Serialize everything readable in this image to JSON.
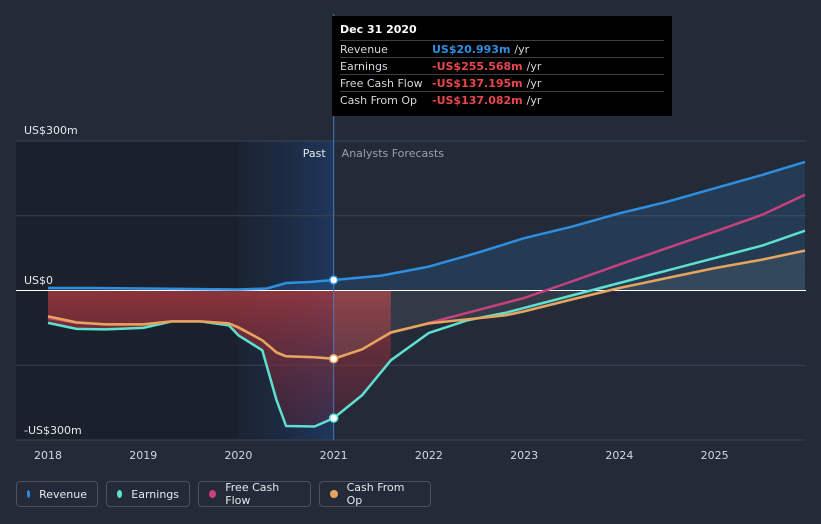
{
  "tooltip": {
    "date": "Dec 31 2020",
    "rows": [
      {
        "label": "Revenue",
        "value": "US$20.993m",
        "unit": "/yr",
        "color": "#2e8fe0"
      },
      {
        "label": "Earnings",
        "value": "-US$255.568m",
        "unit": "/yr",
        "color": "#e8474d"
      },
      {
        "label": "Free Cash Flow",
        "value": "-US$137.195m",
        "unit": "/yr",
        "color": "#e8474d"
      },
      {
        "label": "Cash From Op",
        "value": "-US$137.082m",
        "unit": "/yr",
        "color": "#e8474d"
      }
    ]
  },
  "legend": [
    {
      "label": "Revenue",
      "color": "#2e8fe0"
    },
    {
      "label": "Earnings",
      "color": "#5ee0d0"
    },
    {
      "label": "Free Cash Flow",
      "color": "#c8417e"
    },
    {
      "label": "Cash From Op",
      "color": "#e6a55c"
    }
  ],
  "chart_data": {
    "type": "line",
    "y_labels": {
      "top": "US$300m",
      "zero": "US$0",
      "bottom": "-US$300m"
    },
    "ylim": [
      -300,
      300
    ],
    "xlim": [
      2018,
      2026
    ],
    "x_ticks": [
      "2018",
      "2019",
      "2020",
      "2021",
      "2022",
      "2023",
      "2024",
      "2025"
    ],
    "past_label": "Past",
    "forecast_label": "Analysts Forecasts",
    "divider_x": 2021,
    "series": [
      {
        "name": "Revenue",
        "color": "#2e8fe0",
        "points": [
          [
            2018,
            5
          ],
          [
            2018.5,
            5
          ],
          [
            2019,
            4
          ],
          [
            2019.5,
            3
          ],
          [
            2020,
            2
          ],
          [
            2020.3,
            4
          ],
          [
            2020.5,
            15
          ],
          [
            2020.75,
            17
          ],
          [
            2021,
            21
          ],
          [
            2021.5,
            30
          ],
          [
            2022,
            48
          ],
          [
            2022.5,
            75
          ],
          [
            2023,
            105
          ],
          [
            2023.5,
            128
          ],
          [
            2024,
            155
          ],
          [
            2024.5,
            178
          ],
          [
            2025,
            205
          ],
          [
            2025.5,
            232
          ],
          [
            2025.95,
            258
          ]
        ]
      },
      {
        "name": "Earnings",
        "color": "#5ee0d0",
        "points": [
          [
            2018,
            -65
          ],
          [
            2018.3,
            -77
          ],
          [
            2018.6,
            -78
          ],
          [
            2019,
            -75
          ],
          [
            2019.3,
            -62
          ],
          [
            2019.6,
            -62
          ],
          [
            2019.9,
            -70
          ],
          [
            2020,
            -90
          ],
          [
            2020.25,
            -120
          ],
          [
            2020.4,
            -220
          ],
          [
            2020.5,
            -272
          ],
          [
            2020.8,
            -273
          ],
          [
            2021,
            -256
          ],
          [
            2021.3,
            -210
          ],
          [
            2021.6,
            -140
          ],
          [
            2022,
            -85
          ],
          [
            2022.4,
            -60
          ],
          [
            2022.8,
            -45
          ],
          [
            2023,
            -35
          ],
          [
            2023.5,
            -10
          ],
          [
            2024,
            15
          ],
          [
            2024.5,
            40
          ],
          [
            2025,
            65
          ],
          [
            2025.5,
            90
          ],
          [
            2025.95,
            120
          ]
        ]
      },
      {
        "name": "Free Cash Flow",
        "color": "#c8417e",
        "points": [
          [
            2018,
            -55
          ],
          [
            2018.3,
            -65
          ],
          [
            2018.6,
            -68
          ],
          [
            2019,
            -68
          ],
          [
            2019.3,
            -62
          ],
          [
            2019.6,
            -62
          ],
          [
            2019.9,
            -66
          ],
          [
            2020,
            -75
          ],
          [
            2020.25,
            -100
          ],
          [
            2020.4,
            -125
          ],
          [
            2020.5,
            -132
          ],
          [
            2020.8,
            -134
          ],
          [
            2021,
            -137
          ],
          [
            2021.3,
            -118
          ],
          [
            2021.6,
            -85
          ],
          [
            2022,
            -65
          ],
          [
            2022.5,
            -40
          ],
          [
            2023,
            -15
          ],
          [
            2023.5,
            18
          ],
          [
            2024,
            52
          ],
          [
            2024.5,
            85
          ],
          [
            2025,
            118
          ],
          [
            2025.5,
            152
          ],
          [
            2025.95,
            192
          ]
        ]
      },
      {
        "name": "Cash From Op",
        "color": "#e6a55c",
        "points": [
          [
            2018,
            -52
          ],
          [
            2018.3,
            -64
          ],
          [
            2018.6,
            -68
          ],
          [
            2019,
            -68
          ],
          [
            2019.3,
            -62
          ],
          [
            2019.6,
            -62
          ],
          [
            2019.9,
            -66
          ],
          [
            2020,
            -74
          ],
          [
            2020.25,
            -100
          ],
          [
            2020.4,
            -124
          ],
          [
            2020.5,
            -132
          ],
          [
            2020.8,
            -134
          ],
          [
            2021,
            -137
          ],
          [
            2021.3,
            -118
          ],
          [
            2021.6,
            -84
          ],
          [
            2022,
            -66
          ],
          [
            2022.4,
            -58
          ],
          [
            2022.8,
            -50
          ],
          [
            2023,
            -42
          ],
          [
            2023.5,
            -18
          ],
          [
            2024,
            5
          ],
          [
            2024.5,
            25
          ],
          [
            2025,
            45
          ],
          [
            2025.5,
            62
          ],
          [
            2025.95,
            80
          ]
        ]
      }
    ]
  }
}
